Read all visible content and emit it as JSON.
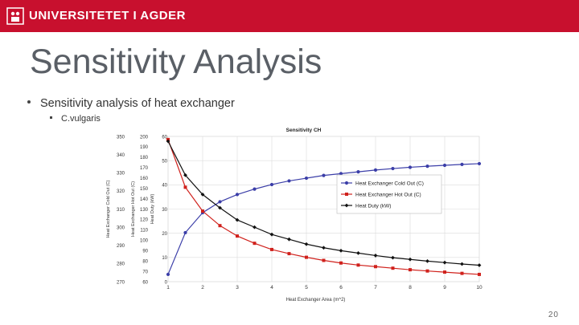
{
  "header": {
    "brand": "UNIVERSITETET I AGDER",
    "brand_color": "#c8102e",
    "logo_icon": "uia-seal-icon"
  },
  "slide": {
    "title": "Sensitivity Analysis",
    "bullets": [
      {
        "text": "Sensitivity analysis of heat exchanger"
      },
      {
        "text": "C.vulgaris"
      }
    ],
    "page_number": "20"
  },
  "chart_data": {
    "type": "line",
    "title": "Sensitivity CH",
    "xlabel": "Heat Exchanger Area (m^2)",
    "x": [
      1,
      1.5,
      2,
      2.5,
      3,
      3.5,
      4,
      4.5,
      5,
      5.5,
      6,
      6.5,
      7,
      7.5,
      8,
      8.5,
      9,
      9.5,
      10
    ],
    "xlim": [
      1,
      10
    ],
    "xticks": [
      "1",
      "2",
      "3",
      "4",
      "5",
      "6",
      "7",
      "8",
      "9",
      "10"
    ],
    "axes": [
      {
        "id": "cold",
        "label": "Heat Exchanger Cold Out (C)",
        "range": [
          270,
          350
        ],
        "ticks": [
          "350",
          "340",
          "330",
          "320",
          "310",
          "300",
          "290",
          "280",
          "270"
        ]
      },
      {
        "id": "hot",
        "label": "Heat Exchanger Hot Out (C)",
        "range": [
          60,
          200
        ],
        "ticks": [
          "200",
          "190",
          "180",
          "170",
          "160",
          "150",
          "140",
          "130",
          "120",
          "110",
          "100",
          "90",
          "80",
          "70",
          "60"
        ]
      },
      {
        "id": "duty",
        "label": "Heat Duty (kW)",
        "range": [
          0,
          60
        ],
        "ticks": [
          "60",
          "50",
          "40",
          "30",
          "20",
          "10",
          "0"
        ]
      }
    ],
    "series": [
      {
        "name": "Heat Exchanger Cold Out (C)",
        "axis": "cold",
        "color": "#3b3ea8",
        "marker": "circle",
        "values": [
          274,
          297,
          308,
          314,
          318,
          321,
          323.5,
          325.5,
          327,
          328.5,
          329.5,
          330.5,
          331.5,
          332.3,
          333,
          333.6,
          334.1,
          334.6,
          335
        ]
      },
      {
        "name": "Heat Exchanger Hot Out (C)",
        "axis": "hot",
        "color": "#d0211c",
        "marker": "square",
        "values": [
          197,
          151,
          128,
          114,
          104,
          97,
          91,
          87,
          83.5,
          80.5,
          78,
          76,
          74.5,
          73,
          71.5,
          70.3,
          69.2,
          68,
          67
        ]
      },
      {
        "name": "Heat Duty (kW)",
        "axis": "duty",
        "color": "#111111",
        "marker": "diamond",
        "values": [
          58,
          44,
          36,
          30.5,
          25.5,
          22.5,
          19.5,
          17.5,
          15.5,
          14,
          12.8,
          11.8,
          10.8,
          9.9,
          9.2,
          8.5,
          7.9,
          7.3,
          6.8
        ]
      }
    ],
    "grid": true,
    "legend_position": "center-right"
  }
}
